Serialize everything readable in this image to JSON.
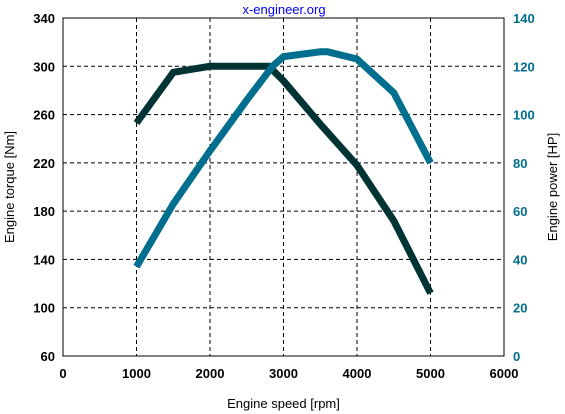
{
  "chart_data": {
    "type": "line",
    "title": "",
    "watermark": "x-engineer.org",
    "xlabel": "Engine speed [rpm]",
    "ylabel_left": "Engine torque [Nm]",
    "ylabel_right": "Engine power [HP]",
    "xlim": [
      0,
      6000
    ],
    "ylim_left": [
      60,
      340
    ],
    "ylim_right": [
      0,
      140
    ],
    "x_ticks": [
      "0",
      "1000",
      "2000",
      "3000",
      "4000",
      "5000",
      "6000"
    ],
    "y_left_ticks": [
      "60",
      "100",
      "140",
      "180",
      "220",
      "260",
      "300",
      "340"
    ],
    "y_right_ticks": [
      "0",
      "20",
      "40",
      "60",
      "80",
      "100",
      "120",
      "140"
    ],
    "grid": true,
    "series": [
      {
        "axis": "left",
        "color": "#003333",
        "x": [
          1000,
          1500,
          2000,
          2500,
          2800,
          3000,
          3500,
          4000,
          4500,
          5000
        ],
        "values": [
          253,
          295,
          300,
          300,
          300,
          288,
          252,
          218,
          172,
          112
        ]
      },
      {
        "axis": "right",
        "color": "#006e8f",
        "x": [
          1000,
          1500,
          2000,
          2500,
          2850,
          3000,
          3500,
          3600,
          4000,
          4500,
          5000
        ],
        "values": [
          37,
          63,
          85,
          106,
          120,
          124,
          126,
          126,
          123,
          109,
          80
        ]
      }
    ],
    "colors": {
      "left_axis_labels": "#000000",
      "right_axis_labels": "#006e8f",
      "watermark": "#0000ff"
    }
  }
}
